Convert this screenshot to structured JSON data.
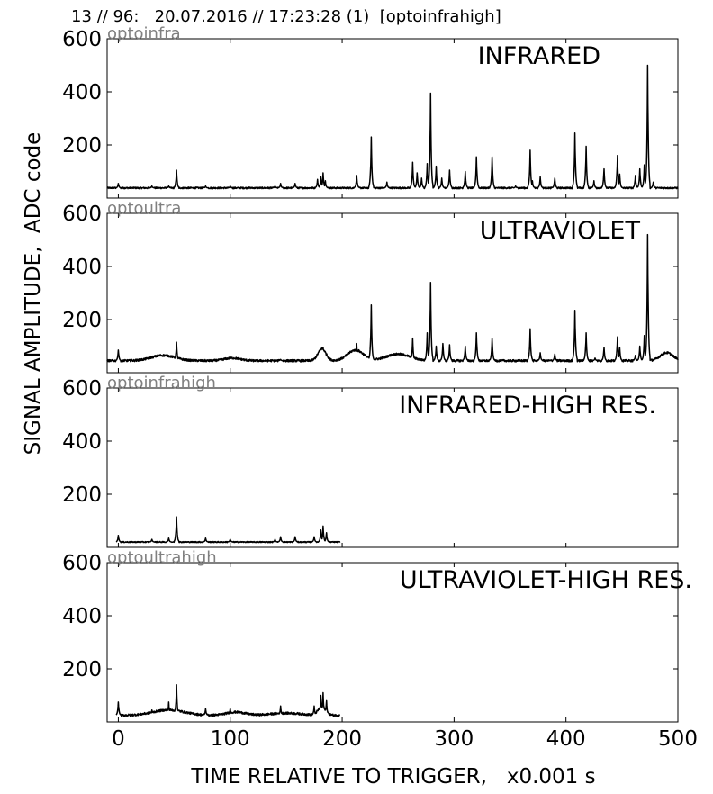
{
  "header": {
    "title": "13 // 96:   20.07.2016 // 17:23:28 (1)  [optoinfrahigh]"
  },
  "chart_data": {
    "type": "line",
    "shared_ylabel": "SIGNAL AMPLITUDE,  ADC code",
    "shared_xlabel": "TIME RELATIVE TO TRIGGER,   x0.001 s",
    "xlim": [
      -10,
      500
    ],
    "ylim": [
      0,
      600
    ],
    "x_ticks": [
      0,
      100,
      200,
      300,
      400,
      500
    ],
    "y_ticks": [
      200,
      400,
      600
    ],
    "grid": false,
    "line_color": "#000000",
    "corner_label_color": "#808080",
    "panels": [
      {
        "corner_label": "optoinfra",
        "title": "INFRARED",
        "baseline": 38,
        "noise": 3,
        "x_range": [
          -10,
          500
        ],
        "humps": [],
        "spikes": [
          [
            0,
            55
          ],
          [
            30,
            45
          ],
          [
            45,
            45
          ],
          [
            52,
            105
          ],
          [
            78,
            45
          ],
          [
            100,
            45
          ],
          [
            140,
            45
          ],
          [
            145,
            55
          ],
          [
            158,
            55
          ],
          [
            178,
            70
          ],
          [
            181,
            80
          ],
          [
            183,
            95
          ],
          [
            185,
            65
          ],
          [
            213,
            85
          ],
          [
            226,
            230
          ],
          [
            240,
            60
          ],
          [
            263,
            135
          ],
          [
            267,
            95
          ],
          [
            271,
            75
          ],
          [
            276,
            130
          ],
          [
            279,
            395
          ],
          [
            284,
            120
          ],
          [
            289,
            75
          ],
          [
            296,
            105
          ],
          [
            310,
            100
          ],
          [
            320,
            155
          ],
          [
            334,
            155
          ],
          [
            355,
            45
          ],
          [
            368,
            180
          ],
          [
            370,
            65
          ],
          [
            377,
            80
          ],
          [
            390,
            75
          ],
          [
            408,
            245
          ],
          [
            418,
            195
          ],
          [
            425,
            65
          ],
          [
            434,
            110
          ],
          [
            446,
            160
          ],
          [
            448,
            90
          ],
          [
            462,
            85
          ],
          [
            466,
            110
          ],
          [
            470,
            125
          ],
          [
            473,
            500
          ],
          [
            478,
            60
          ]
        ]
      },
      {
        "corner_label": "optoultra",
        "title": "ULTRAVIOLET",
        "baseline": 45,
        "noise": 4,
        "x_range": [
          -10,
          500
        ],
        "humps": [
          [
            40,
            15,
            20
          ],
          [
            102,
            10,
            10
          ],
          [
            182,
            5,
            45
          ],
          [
            212,
            10,
            40
          ],
          [
            250,
            15,
            25
          ],
          [
            490,
            8,
            30
          ]
        ],
        "spikes": [
          [
            0,
            85
          ],
          [
            52,
            115
          ],
          [
            145,
            50
          ],
          [
            183,
            95
          ],
          [
            213,
            110
          ],
          [
            226,
            255
          ],
          [
            263,
            130
          ],
          [
            276,
            150
          ],
          [
            279,
            340
          ],
          [
            284,
            100
          ],
          [
            290,
            110
          ],
          [
            296,
            105
          ],
          [
            310,
            100
          ],
          [
            320,
            150
          ],
          [
            334,
            130
          ],
          [
            368,
            165
          ],
          [
            377,
            75
          ],
          [
            390,
            70
          ],
          [
            408,
            235
          ],
          [
            418,
            150
          ],
          [
            426,
            55
          ],
          [
            434,
            95
          ],
          [
            446,
            135
          ],
          [
            448,
            95
          ],
          [
            462,
            65
          ],
          [
            466,
            100
          ],
          [
            470,
            140
          ],
          [
            473,
            520
          ]
        ]
      },
      {
        "corner_label": "optoinfrahigh",
        "title": "INFRARED-HIGH RES.",
        "baseline": 20,
        "noise": 2,
        "x_range": [
          -2,
          198
        ],
        "humps": [],
        "spikes": [
          [
            0,
            45
          ],
          [
            30,
            30
          ],
          [
            45,
            35
          ],
          [
            52,
            115
          ],
          [
            78,
            35
          ],
          [
            100,
            30
          ],
          [
            140,
            30
          ],
          [
            145,
            40
          ],
          [
            158,
            40
          ],
          [
            175,
            40
          ],
          [
            181,
            65
          ],
          [
            183,
            80
          ],
          [
            186,
            55
          ]
        ]
      },
      {
        "corner_label": "optoultrahigh",
        "title": "ULTRAVIOLET-HIGH RES.",
        "baseline": 25,
        "noise": 4,
        "x_range": [
          -2,
          198
        ],
        "humps": [
          [
            45,
            20,
            20
          ],
          [
            105,
            12,
            12
          ],
          [
            150,
            20,
            8
          ],
          [
            182,
            5,
            30
          ]
        ],
        "spikes": [
          [
            0,
            75
          ],
          [
            30,
            45
          ],
          [
            45,
            75
          ],
          [
            52,
            140
          ],
          [
            78,
            50
          ],
          [
            100,
            50
          ],
          [
            145,
            60
          ],
          [
            175,
            60
          ],
          [
            181,
            100
          ],
          [
            183,
            110
          ],
          [
            186,
            80
          ]
        ]
      }
    ]
  }
}
